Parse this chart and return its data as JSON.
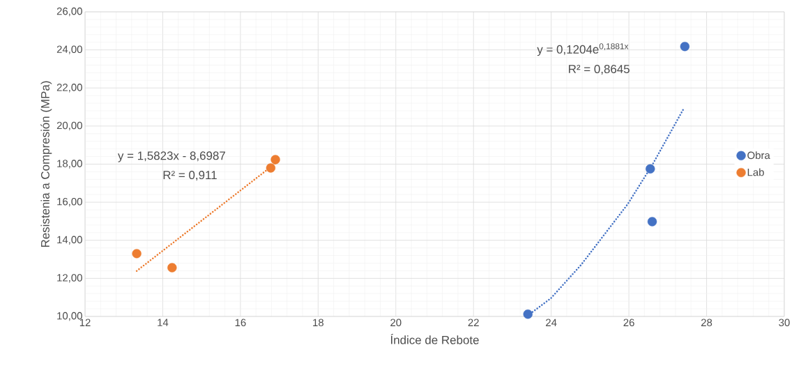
{
  "chart_data": {
    "type": "scatter",
    "xlabel": "Índice de Rebote",
    "ylabel": "Resistenia a Compresión (MPa)",
    "series": [
      {
        "name": "Obra",
        "color": "#4472c4",
        "x": [
          23.4,
          26.55,
          26.6,
          27.44
        ],
        "values": [
          10.12,
          17.75,
          14.98,
          24.18
        ]
      },
      {
        "name": "Lab",
        "color": "#ed7d31",
        "x": [
          13.33,
          14.24,
          16.78,
          16.9
        ],
        "values": [
          13.3,
          12.56,
          17.8,
          18.24
        ]
      },
      {
        "type": "line",
        "color": "#4472c4",
        "line_style": "dotted",
        "marker": "none",
        "x": [
          23.4,
          23.99,
          24.77,
          25.97,
          26.6,
          27.42
        ],
        "values": [
          10.05,
          10.95,
          12.71,
          15.9,
          17.95,
          20.95
        ]
      },
      {
        "type": "line",
        "color": "#ed7d31",
        "line_style": "dotted",
        "marker": "none",
        "x": [
          13.33,
          16.9
        ],
        "values": [
          12.39,
          18.04
        ]
      }
    ],
    "annotations": [
      "y = 0,1204e$^{0,1881x}$",
      "R² = 0,8645",
      "y = 1,5823x - 8,6987",
      "R² = 0,911"
    ],
    "xlim": [
      12,
      30
    ],
    "xticks": [
      12,
      14,
      16,
      18,
      20,
      22,
      24,
      26,
      28,
      30
    ],
    "ylim": [
      10,
      26
    ],
    "yticks": [
      {
        "value": 10,
        "label": "10,00"
      },
      {
        "value": 12,
        "label": "12,00"
      },
      {
        "value": 14,
        "label": "14,00"
      },
      {
        "value": 16,
        "label": "16,00"
      },
      {
        "value": 18,
        "label": "18,00"
      },
      {
        "value": 20,
        "label": "20,00"
      },
      {
        "value": 22,
        "label": "22,00"
      },
      {
        "value": 24,
        "label": "24,00"
      },
      {
        "value": 26,
        "label": "26,00"
      }
    ],
    "grid": true,
    "legend": "right",
    "marker": "circle"
  }
}
